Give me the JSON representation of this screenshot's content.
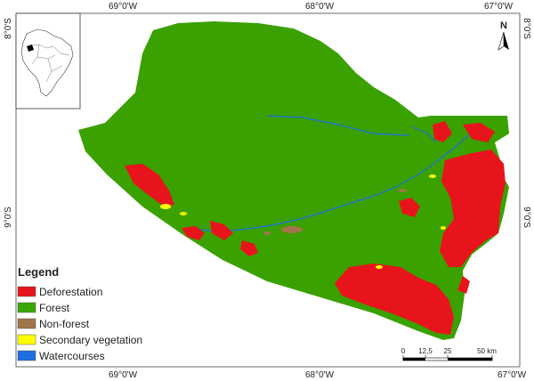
{
  "axes": {
    "top": [
      "69°0'W",
      "68°0'W",
      "67°0'W"
    ],
    "bottom": [
      "69°0'W",
      "68°0'W",
      "67°0'W"
    ],
    "left": [
      "8°0'S",
      "9°0'S"
    ],
    "right": [
      "8°0'S",
      "9°0'S"
    ]
  },
  "north": {
    "label": "N"
  },
  "legend": {
    "title": "Legend",
    "items": [
      {
        "label": "Deforestation",
        "color": "#e8141b"
      },
      {
        "label": "Forest",
        "color": "#38a800"
      },
      {
        "label": "Non-forest",
        "color": "#a0754a"
      },
      {
        "label": "Secondary vegetation",
        "color": "#ffff00"
      },
      {
        "label": "Watercourses",
        "color": "#1e6fe0"
      }
    ]
  },
  "scale_bar": {
    "ticks": [
      "0",
      "12,5",
      "25",
      "50 km"
    ]
  },
  "colors": {
    "forest": "#3aa100",
    "deforestation": "#e8141b",
    "non_forest": "#a0754a",
    "secondary": "#ffff00",
    "water": "#1e6fe0"
  },
  "inset": {
    "description_icon": "brazil-locator-map"
  }
}
